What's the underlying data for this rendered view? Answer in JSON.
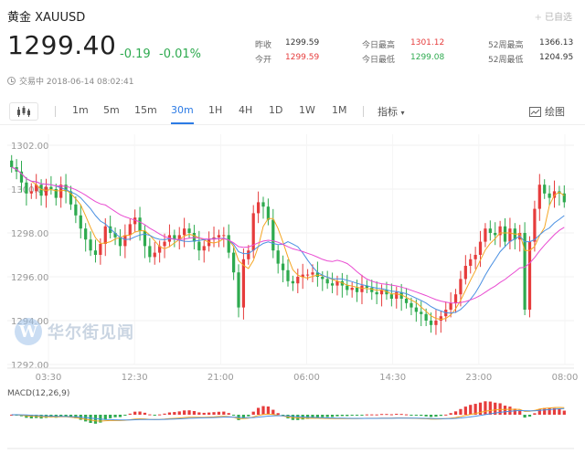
{
  "header": {
    "title": "黄金 XAUUSD",
    "added_label": "已自选",
    "price": "1299.40",
    "change": "-0.19",
    "change_pct": "-0.01%",
    "status": "交易中 2018-06-14 08:02:41"
  },
  "stats": {
    "prev_close_label": "昨收",
    "prev_close": "1299.59",
    "open_label": "今开",
    "open": "1299.59",
    "high_label": "今日最高",
    "high": "1301.12",
    "low_label": "今日最低",
    "low": "1299.08",
    "w52_high_label": "52周最高",
    "w52_high": "1366.13",
    "w52_low_label": "52周最低",
    "w52_low": "1204.95"
  },
  "toolbar": {
    "timeframes": [
      "1m",
      "5m",
      "15m",
      "30m",
      "1H",
      "4H",
      "1D",
      "1W",
      "1M"
    ],
    "active": "30m",
    "indicators_label": "指标",
    "draw_label": "绘图"
  },
  "watermark": {
    "logo": "W",
    "text": "华尔街见闻"
  },
  "colors": {
    "up": "#e63c3c",
    "down": "#2eaa4f",
    "ma1": "#f5a623",
    "ma2": "#4a90e2",
    "ma3": "#e94bd1",
    "accent": "#2c7be5"
  },
  "chart_data": {
    "type": "candlestick",
    "symbol": "XAUUSD",
    "interval": "30m",
    "y_ticks": [
      "1302.00",
      "1300.00",
      "1298.00",
      "1296.00",
      "1294.00",
      "1292.00"
    ],
    "ylim": [
      1292,
      1302.5
    ],
    "x_ticks": [
      "03:30",
      "12:30",
      "21:00",
      "06:00",
      "14:30",
      "23:00",
      "08:00"
    ],
    "macd_label": "MACD(12,26,9)",
    "closes": [
      1301.0,
      1300.8,
      1300.3,
      1299.8,
      1299.9,
      1300.2,
      1299.7,
      1300.1,
      1300.0,
      1299.6,
      1300.2,
      1299.9,
      1299.3,
      1298.8,
      1298.2,
      1297.7,
      1297.2,
      1297.0,
      1297.5,
      1298.3,
      1298.0,
      1297.8,
      1297.4,
      1297.9,
      1298.4,
      1298.7,
      1298.1,
      1297.4,
      1296.9,
      1297.1,
      1297.4,
      1297.6,
      1297.9,
      1297.7,
      1297.9,
      1298.2,
      1298.0,
      1297.6,
      1297.2,
      1297.4,
      1297.7,
      1297.8,
      1297.9,
      1297.9,
      1297.1,
      1296.2,
      1294.6,
      1296.8,
      1297.2,
      1298.9,
      1299.4,
      1299.2,
      1298.6,
      1297.2,
      1296.6,
      1296.3,
      1295.8,
      1295.7,
      1296.0,
      1296.1,
      1296.1,
      1296.2,
      1296.0,
      1295.9,
      1295.7,
      1295.6,
      1295.8,
      1295.6,
      1295.4,
      1295.5,
      1295.3,
      1295.6,
      1295.5,
      1295.3,
      1295.2,
      1295.4,
      1295.2,
      1295.0,
      1295.3,
      1295.0,
      1294.8,
      1294.6,
      1294.4,
      1294.3,
      1294.0,
      1293.8,
      1294.0,
      1294.2,
      1294.5,
      1294.8,
      1295.2,
      1295.9,
      1296.5,
      1296.8,
      1297.0,
      1297.6,
      1298.2,
      1298.0,
      1297.9,
      1298.3,
      1297.6,
      1298.2,
      1297.7,
      1298.0,
      1294.5,
      1297.6,
      1299.1,
      1300.2,
      1299.8,
      1299.6,
      1299.9,
      1299.8,
      1299.4
    ]
  }
}
